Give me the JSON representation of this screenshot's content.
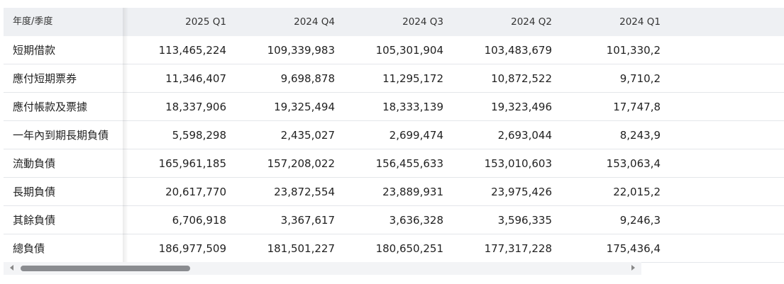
{
  "table": {
    "header": {
      "label": "年度/季度",
      "periods": [
        "2025 Q1",
        "2024 Q4",
        "2024 Q3",
        "2024 Q2",
        "2024 Q1"
      ]
    },
    "rows": [
      {
        "label": "短期借款",
        "values": [
          "113,465,224",
          "109,339,983",
          "105,301,904",
          "103,483,679",
          "101,330,2"
        ]
      },
      {
        "label": "應付短期票券",
        "values": [
          "11,346,407",
          "9,698,878",
          "11,295,172",
          "10,872,522",
          "9,710,2"
        ]
      },
      {
        "label": "應付帳款及票據",
        "values": [
          "18,337,906",
          "19,325,494",
          "18,333,139",
          "19,323,496",
          "17,747,8"
        ]
      },
      {
        "label": "一年內到期長期負債",
        "values": [
          "5,598,298",
          "2,435,027",
          "2,699,474",
          "2,693,044",
          "8,243,9"
        ]
      },
      {
        "label": "流動負債",
        "values": [
          "165,961,185",
          "157,208,022",
          "156,455,633",
          "153,010,603",
          "153,063,4"
        ]
      },
      {
        "label": "長期負債",
        "values": [
          "20,617,770",
          "23,872,554",
          "23,889,931",
          "23,975,426",
          "22,015,2"
        ]
      },
      {
        "label": "其餘負債",
        "values": [
          "6,706,918",
          "3,367,617",
          "3,636,328",
          "3,596,335",
          "9,246,3"
        ]
      },
      {
        "label": "總負債",
        "values": [
          "186,977,509",
          "181,501,227",
          "180,650,251",
          "177,317,228",
          "175,436,4"
        ]
      }
    ]
  },
  "scrollbar": {
    "position_fraction": 0.0,
    "visible_fraction": 0.28
  }
}
